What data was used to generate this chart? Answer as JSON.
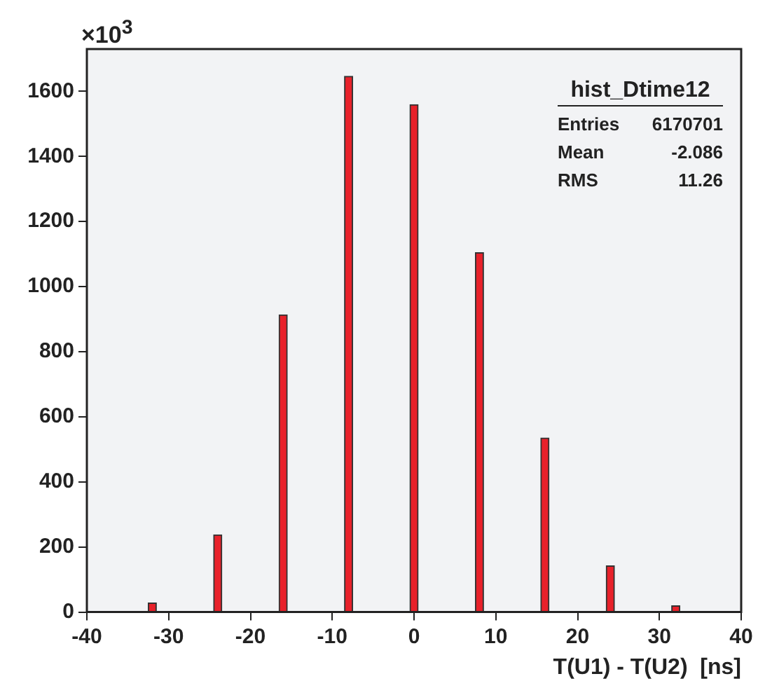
{
  "chart_data": {
    "type": "histogram",
    "xlabel": "T(U1) - T(U2)  [ns]",
    "ylabel": "×10$^{3}$",
    "bins": [
      -39.5,
      -38.5,
      -37.5,
      -36.5,
      -35.5,
      -34.5,
      -33.5,
      -32.5,
      -31.5,
      -30.5,
      -29.5,
      -28.5,
      -27.5,
      -26.5,
      -25.5,
      -24.5,
      -23.5,
      -22.5,
      -21.5,
      -20.5,
      -19.5,
      -18.5,
      -17.5,
      -16.5,
      -15.5,
      -14.5,
      -13.5,
      -12.5,
      -11.5,
      -10.5,
      -9.5,
      -8.5,
      -7.5,
      -6.5,
      -5.5,
      -4.5,
      -3.5,
      -2.5,
      -1.5,
      -0.5,
      0.5,
      1.5,
      2.5,
      3.5,
      4.5,
      5.5,
      6.5,
      7.5,
      8.5,
      9.5,
      10.5,
      11.5,
      12.5,
      13.5,
      14.5,
      15.5,
      16.5,
      17.5,
      18.5,
      19.5,
      20.5,
      21.5,
      22.5,
      23.5,
      24.5,
      25.5,
      26.5,
      27.5,
      28.5,
      29.5,
      30.5,
      31.5,
      32.5,
      33.5,
      34.5,
      35.5,
      36.5,
      37.5,
      38.5,
      39.5
    ],
    "values": [
      0,
      0,
      0,
      0,
      0,
      0,
      0,
      28,
      0,
      0,
      0,
      0,
      0,
      0,
      0,
      237,
      0,
      0,
      0,
      0,
      0,
      0,
      0,
      913,
      0,
      0,
      0,
      0,
      0,
      0,
      0,
      1646,
      0,
      0,
      0,
      0,
      0,
      0,
      0,
      1559,
      0,
      0,
      0,
      0,
      0,
      0,
      0,
      1104,
      0,
      0,
      0,
      0,
      0,
      0,
      0,
      535,
      0,
      0,
      0,
      0,
      0,
      0,
      0,
      142,
      0,
      0,
      0,
      0,
      0,
      0,
      0,
      19,
      0,
      0,
      0,
      0,
      0,
      0,
      0
    ],
    "color": "#e8212a",
    "xlim": [
      -40,
      40
    ],
    "xticks": [
      -40,
      -30,
      -20,
      -10,
      0,
      10,
      20,
      30,
      40
    ],
    "ylim": [
      0,
      1730
    ],
    "yticks": [
      0,
      200,
      400,
      600,
      800,
      1000,
      1200,
      1400,
      1600
    ],
    "annotations": [
      "hist_Dtime12",
      "Entries 6170701",
      "Mean -2.086",
      "RMS 11.26"
    ]
  }
}
